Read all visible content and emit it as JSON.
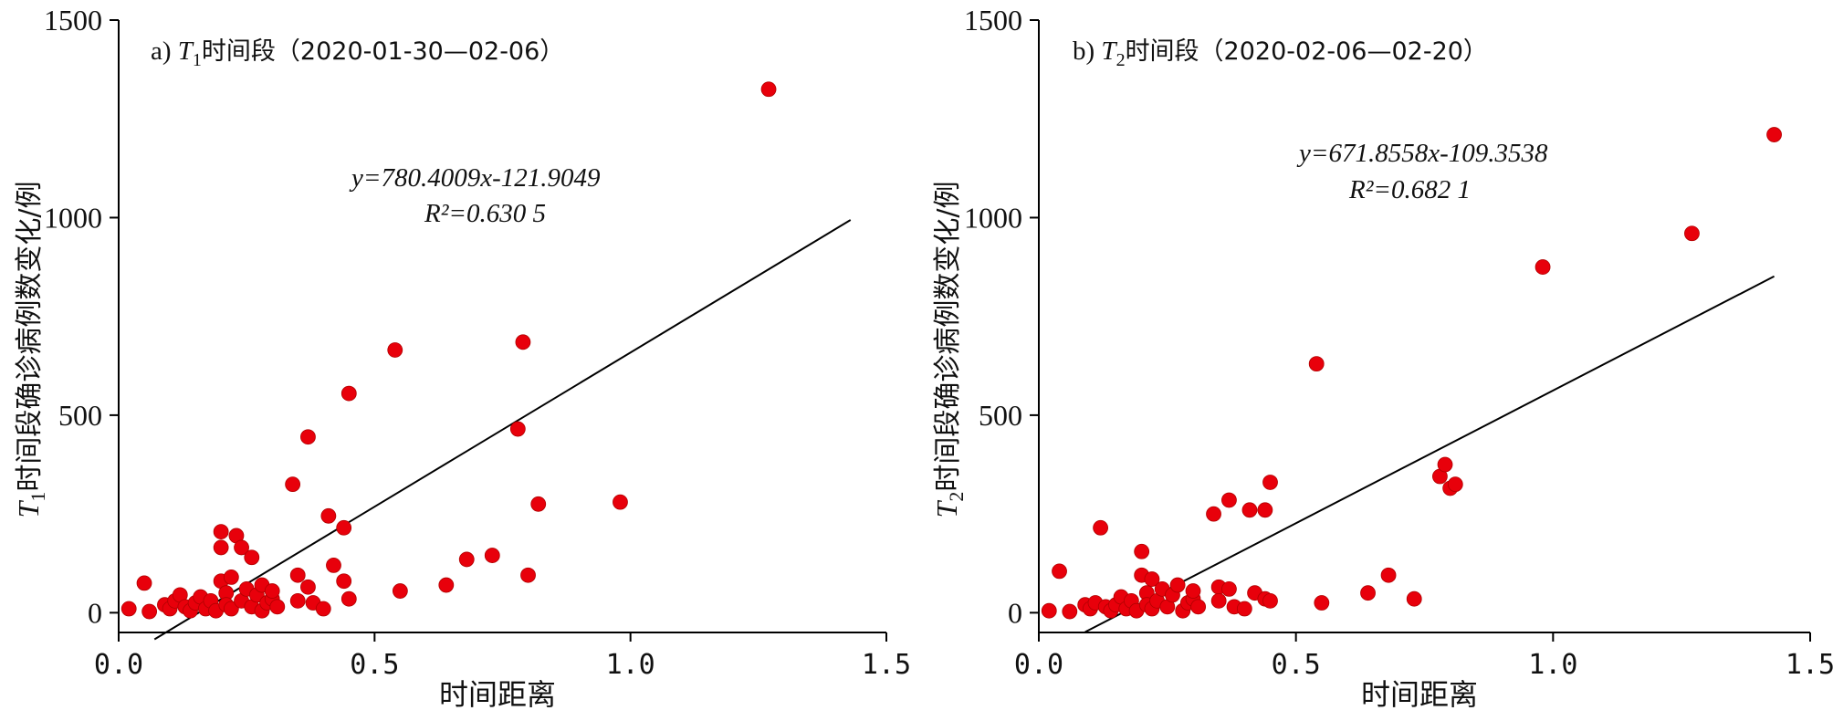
{
  "chart_data": [
    {
      "type": "scatter",
      "panel_label": "a)",
      "title_var": "T",
      "title_sub": "1",
      "title_text": "时间段（2020-01-30—02-06）",
      "xlabel": "时间距离",
      "ylabel_var": "T",
      "ylabel_sub": "1",
      "ylabel_text": "时间段确诊病例数变化/例",
      "xlim": [
        0,
        1.5
      ],
      "ylim": [
        -50,
        1500
      ],
      "xticks": [
        "0.0",
        "0.5",
        "1.0",
        "1.5"
      ],
      "yticks": [
        "0",
        "500",
        "1000",
        "1500"
      ],
      "equation": "y=780.4009x-121.9049",
      "r2": "R²=0.630 5",
      "fit": {
        "slope": 780.4009,
        "intercept": -121.9049,
        "x_range": [
          0.07,
          1.43
        ]
      },
      "points": [
        [
          0.02,
          10
        ],
        [
          0.05,
          75
        ],
        [
          0.06,
          3
        ],
        [
          0.09,
          20
        ],
        [
          0.1,
          10
        ],
        [
          0.11,
          30
        ],
        [
          0.12,
          45
        ],
        [
          0.13,
          15
        ],
        [
          0.14,
          5
        ],
        [
          0.15,
          25
        ],
        [
          0.16,
          40
        ],
        [
          0.17,
          10
        ],
        [
          0.18,
          30
        ],
        [
          0.19,
          5
        ],
        [
          0.2,
          80
        ],
        [
          0.2,
          205
        ],
        [
          0.2,
          165
        ],
        [
          0.21,
          50
        ],
        [
          0.21,
          20
        ],
        [
          0.22,
          90
        ],
        [
          0.22,
          10
        ],
        [
          0.23,
          195
        ],
        [
          0.24,
          30
        ],
        [
          0.24,
          165
        ],
        [
          0.25,
          60
        ],
        [
          0.26,
          140
        ],
        [
          0.26,
          15
        ],
        [
          0.27,
          45
        ],
        [
          0.28,
          70
        ],
        [
          0.28,
          5
        ],
        [
          0.29,
          25
        ],
        [
          0.3,
          35
        ],
        [
          0.3,
          55
        ],
        [
          0.31,
          15
        ],
        [
          0.34,
          325
        ],
        [
          0.35,
          95
        ],
        [
          0.35,
          30
        ],
        [
          0.37,
          445
        ],
        [
          0.37,
          65
        ],
        [
          0.38,
          25
        ],
        [
          0.4,
          10
        ],
        [
          0.41,
          245
        ],
        [
          0.42,
          120
        ],
        [
          0.44,
          215
        ],
        [
          0.44,
          80
        ],
        [
          0.45,
          555
        ],
        [
          0.45,
          35
        ],
        [
          0.54,
          665
        ],
        [
          0.55,
          55
        ],
        [
          0.64,
          70
        ],
        [
          0.68,
          135
        ],
        [
          0.73,
          145
        ],
        [
          0.78,
          465
        ],
        [
          0.79,
          685
        ],
        [
          0.8,
          95
        ],
        [
          0.82,
          275
        ],
        [
          0.98,
          280
        ],
        [
          1.27,
          1325
        ]
      ]
    },
    {
      "type": "scatter",
      "panel_label": "b)",
      "title_var": "T",
      "title_sub": "2",
      "title_text": "时间段（2020-02-06—02-20）",
      "xlabel": "时间距离",
      "ylabel_var": "T",
      "ylabel_sub": "2",
      "ylabel_text": "时间段确诊病例数变化/例",
      "xlim": [
        0,
        1.5
      ],
      "ylim": [
        -50,
        1500
      ],
      "xticks": [
        "0.0",
        "0.5",
        "1.0",
        "1.5"
      ],
      "yticks": [
        "0",
        "500",
        "1000",
        "1500"
      ],
      "equation": "y=671.8558x-109.3538",
      "r2": "R²=0.682 1",
      "fit": {
        "slope": 671.8558,
        "intercept": -109.3538,
        "x_range": [
          0.09,
          1.43
        ]
      },
      "points": [
        [
          0.02,
          5
        ],
        [
          0.04,
          105
        ],
        [
          0.06,
          3
        ],
        [
          0.09,
          20
        ],
        [
          0.1,
          10
        ],
        [
          0.11,
          25
        ],
        [
          0.12,
          215
        ],
        [
          0.13,
          15
        ],
        [
          0.14,
          5
        ],
        [
          0.15,
          20
        ],
        [
          0.16,
          40
        ],
        [
          0.17,
          10
        ],
        [
          0.18,
          30
        ],
        [
          0.19,
          5
        ],
        [
          0.2,
          95
        ],
        [
          0.2,
          155
        ],
        [
          0.21,
          50
        ],
        [
          0.21,
          20
        ],
        [
          0.22,
          85
        ],
        [
          0.22,
          10
        ],
        [
          0.23,
          30
        ],
        [
          0.24,
          60
        ],
        [
          0.25,
          15
        ],
        [
          0.26,
          45
        ],
        [
          0.27,
          70
        ],
        [
          0.28,
          5
        ],
        [
          0.29,
          25
        ],
        [
          0.3,
          35
        ],
        [
          0.3,
          55
        ],
        [
          0.31,
          15
        ],
        [
          0.34,
          250
        ],
        [
          0.35,
          65
        ],
        [
          0.35,
          30
        ],
        [
          0.37,
          285
        ],
        [
          0.37,
          60
        ],
        [
          0.38,
          15
        ],
        [
          0.4,
          10
        ],
        [
          0.41,
          260
        ],
        [
          0.42,
          50
        ],
        [
          0.44,
          260
        ],
        [
          0.44,
          35
        ],
        [
          0.45,
          330
        ],
        [
          0.45,
          30
        ],
        [
          0.54,
          630
        ],
        [
          0.55,
          25
        ],
        [
          0.64,
          50
        ],
        [
          0.68,
          95
        ],
        [
          0.73,
          35
        ],
        [
          0.78,
          345
        ],
        [
          0.79,
          375
        ],
        [
          0.8,
          315
        ],
        [
          0.81,
          325
        ],
        [
          0.98,
          875
        ],
        [
          1.27,
          960
        ],
        [
          1.43,
          1210
        ]
      ]
    }
  ]
}
